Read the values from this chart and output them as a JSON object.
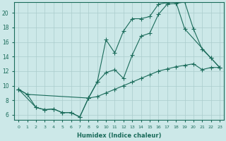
{
  "xlabel": "Humidex (Indice chaleur)",
  "background_color": "#cce8e8",
  "grid_color": "#aacccc",
  "line_color": "#1a6b5a",
  "xlim": [
    -0.5,
    23.5
  ],
  "ylim": [
    5.3,
    21.5
  ],
  "xticks": [
    0,
    1,
    2,
    3,
    4,
    5,
    6,
    7,
    8,
    9,
    10,
    11,
    12,
    13,
    14,
    15,
    16,
    17,
    18,
    19,
    20,
    21,
    22,
    23
  ],
  "yticks": [
    6,
    8,
    10,
    12,
    14,
    16,
    18,
    20
  ],
  "line1_x": [
    0,
    1,
    2,
    3,
    4,
    5,
    6,
    7,
    8,
    9,
    10,
    11,
    12,
    13,
    14,
    15,
    16,
    17,
    18,
    19,
    20,
    21,
    22,
    23
  ],
  "line1_y": [
    9.5,
    8.8,
    7.0,
    6.7,
    6.8,
    6.3,
    6.3,
    5.7,
    8.3,
    10.5,
    11.8,
    12.2,
    11.0,
    14.2,
    16.8,
    17.2,
    19.8,
    21.2,
    21.3,
    21.5,
    17.8,
    15.0,
    13.8,
    12.5
  ],
  "line2_x": [
    0,
    2,
    3,
    4,
    5,
    6,
    7,
    8,
    9,
    10,
    11,
    12,
    13,
    14,
    15,
    16,
    17,
    18,
    19,
    22,
    23
  ],
  "line2_y": [
    9.5,
    7.0,
    6.7,
    6.8,
    6.3,
    6.3,
    5.7,
    8.3,
    10.5,
    16.3,
    14.5,
    17.5,
    19.2,
    19.2,
    19.5,
    21.2,
    21.4,
    21.5,
    17.8,
    13.8,
    12.5
  ],
  "line3_x": [
    0,
    1,
    8,
    9,
    10,
    11,
    12,
    13,
    14,
    15,
    16,
    17,
    18,
    19,
    20,
    21,
    22,
    23
  ],
  "line3_y": [
    9.5,
    8.8,
    8.3,
    8.5,
    9.0,
    9.5,
    10.0,
    10.5,
    11.0,
    11.5,
    12.0,
    12.3,
    12.6,
    12.8,
    13.0,
    12.2,
    12.5,
    12.5
  ]
}
